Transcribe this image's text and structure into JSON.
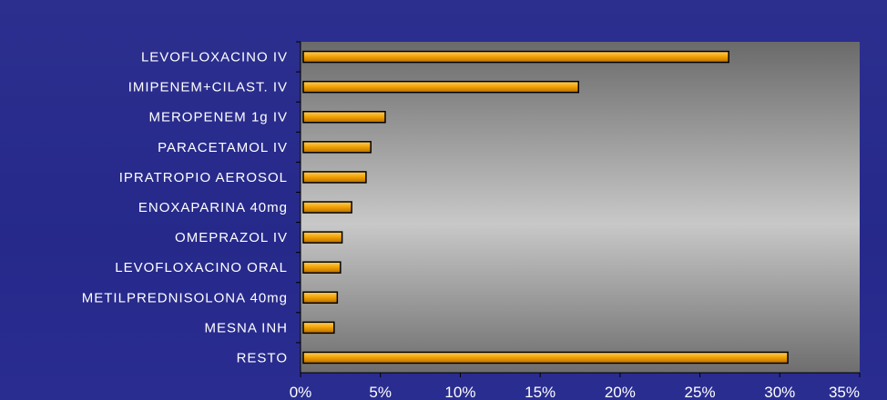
{
  "chart_data": {
    "type": "bar",
    "orientation": "horizontal",
    "categories": [
      "LEVOFLOXACINO IV",
      "IMIPENEM+CILAST. IV",
      "MEROPENEM 1g IV",
      "PARACETAMOL IV",
      "IPRATROPIO AEROSOL",
      "ENOXAPARINA 40mg",
      "OMEPRAZOL IV",
      "LEVOFLOXACINO ORAL",
      "METILPREDNISOLONA 40mg",
      "MESNA INH",
      "RESTO"
    ],
    "values": [
      26.8,
      17.4,
      5.3,
      4.4,
      4.1,
      3.2,
      2.6,
      2.5,
      2.3,
      2.1,
      30.5
    ],
    "xlim": [
      0,
      35
    ],
    "xticks": [
      "0%",
      "5%",
      "10%",
      "15%",
      "20%",
      "25%",
      "30%",
      "35%"
    ],
    "title": "",
    "xlabel": "",
    "ylabel": "",
    "grid": false,
    "colors": {
      "bar_fill": "#f0a000",
      "bar_stroke": "#000000",
      "plot_center": "#c8c8c8",
      "plot_edge": "#6a6a6a",
      "text": "#ffffff"
    }
  }
}
